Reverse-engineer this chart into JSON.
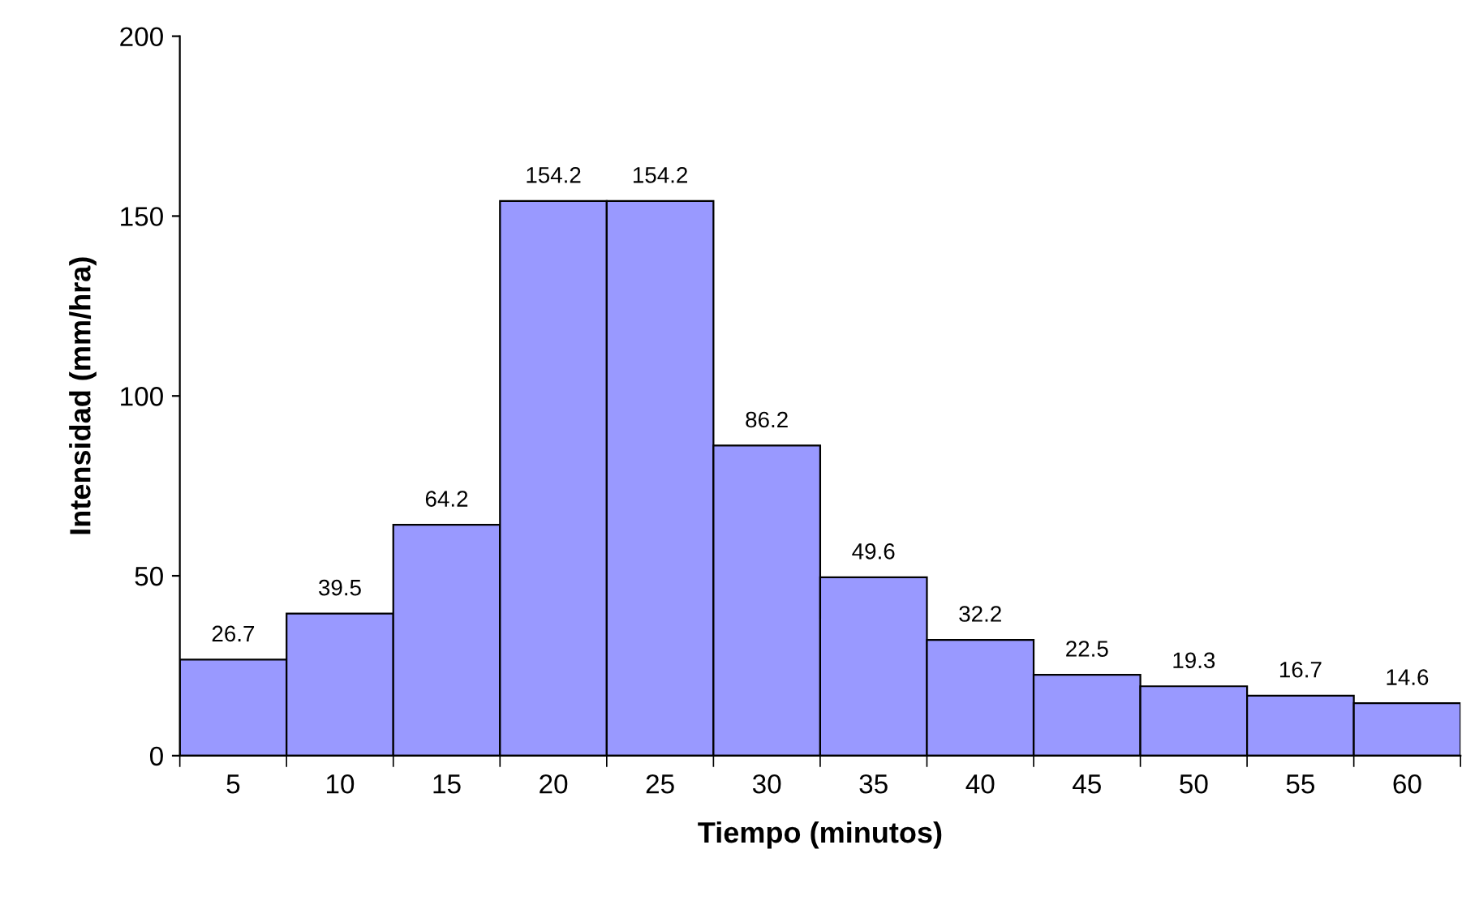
{
  "chart_data": {
    "type": "bar",
    "xlabel": "Tiempo (minutos)",
    "ylabel": "Intensidad (mm/hra)",
    "categories": [
      "5",
      "10",
      "15",
      "20",
      "25",
      "30",
      "35",
      "40",
      "45",
      "50",
      "55",
      "60"
    ],
    "values": [
      26.7,
      39.5,
      64.2,
      154.2,
      154.2,
      86.2,
      49.6,
      32.2,
      22.5,
      19.3,
      16.7,
      14.6
    ],
    "color": "#9999ff",
    "ylim": [
      0,
      200
    ],
    "yticks": [
      0,
      50,
      100,
      150,
      200
    ],
    "data_labels": true,
    "grid": false
  }
}
